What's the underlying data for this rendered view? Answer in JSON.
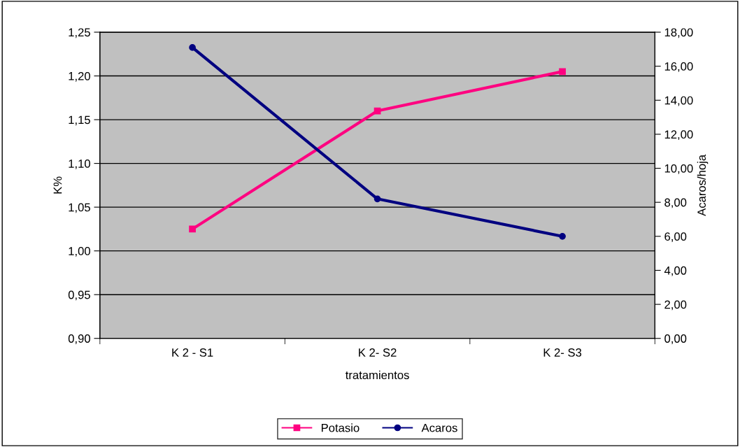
{
  "chart_data": {
    "type": "line",
    "xlabel": "tratamientos",
    "ylabel": "K%",
    "y2label": "Acaros/hoja",
    "categories": [
      "K 2 - S1",
      "K 2- S2",
      "K 2- S3"
    ],
    "series": [
      {
        "name": "Potasio",
        "color": "#ff0080",
        "values": [
          1.025,
          1.16,
          1.205
        ],
        "marker": "square"
      },
      {
        "name": "Acaros",
        "color": "#000080",
        "values": [
          17.1,
          8.2,
          6.0
        ],
        "axis": "y2",
        "marker": "circle"
      }
    ],
    "ylim": [
      0.9,
      1.25
    ],
    "yticks": [
      {
        "value": 0.9,
        "label": "0,90"
      },
      {
        "value": 0.95,
        "label": "0,95"
      },
      {
        "value": 1.0,
        "label": "1,00"
      },
      {
        "value": 1.05,
        "label": "1,05"
      },
      {
        "value": 1.1,
        "label": "1,10"
      },
      {
        "value": 1.15,
        "label": "1,15"
      },
      {
        "value": 1.2,
        "label": "1,20"
      },
      {
        "value": 1.25,
        "label": "1,25"
      }
    ],
    "y2lim": [
      0,
      18
    ],
    "y2ticks": [
      {
        "value": 0,
        "label": "0,00"
      },
      {
        "value": 2,
        "label": "2,00"
      },
      {
        "value": 4,
        "label": "4,00"
      },
      {
        "value": 6,
        "label": "6,00"
      },
      {
        "value": 8,
        "label": "8,00"
      },
      {
        "value": 10,
        "label": "10,00"
      },
      {
        "value": 12,
        "label": "12,00"
      },
      {
        "value": 14,
        "label": "14,00"
      },
      {
        "value": 16,
        "label": "16,00"
      },
      {
        "value": 18,
        "label": "18,00"
      }
    ],
    "grid": "y",
    "legend": "bottom"
  }
}
